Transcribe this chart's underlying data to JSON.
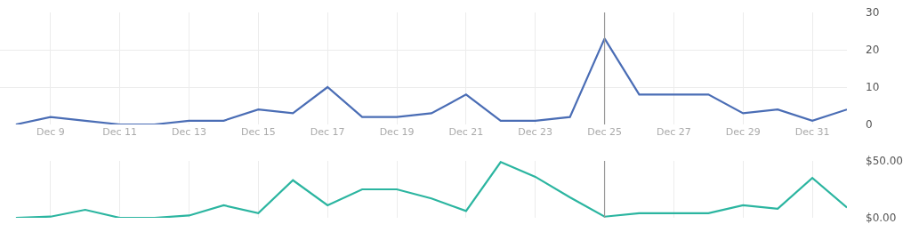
{
  "chart_data": [
    {
      "type": "line",
      "categories": [
        null,
        "Dec 9",
        null,
        "Dec 11",
        null,
        "Dec 13",
        null,
        "Dec 15",
        null,
        "Dec 17",
        null,
        "Dec 19",
        null,
        "Dec 21",
        null,
        "Dec 23",
        null,
        "Dec 25",
        null,
        "Dec 27",
        null,
        "Dec 29",
        null,
        "Dec 31",
        null
      ],
      "series": [
        {
          "color": "#4a6db5",
          "values": [
            0,
            2,
            1,
            0,
            0,
            1,
            1,
            4,
            3,
            10,
            2,
            2,
            3,
            8,
            1,
            1,
            2,
            23,
            8,
            8,
            8,
            3,
            4,
            1,
            4
          ]
        }
      ],
      "ylim": [
        0,
        30
      ],
      "yticks": [
        0,
        10,
        20,
        30
      ],
      "grid": true,
      "line_style": "solid",
      "ref_lines": [
        {
          "axis": "x",
          "value": "Dec 25",
          "color": "#999999"
        }
      ]
    },
    {
      "type": "line",
      "categories": [
        null,
        "Dec 9",
        null,
        "Dec 11",
        null,
        "Dec 13",
        null,
        "Dec 15",
        null,
        "Dec 17",
        null,
        "Dec 19",
        null,
        "Dec 21",
        null,
        "Dec 23",
        null,
        "Dec 25",
        null,
        "Dec 27",
        null,
        "Dec 29",
        null,
        "Dec 31",
        null
      ],
      "series": [
        {
          "color": "#2bb5a0",
          "values": [
            0,
            1,
            7,
            0,
            0,
            2,
            11,
            4,
            33,
            11,
            25,
            25,
            17,
            6,
            49,
            36,
            18,
            1,
            4,
            4,
            4,
            11,
            8,
            35,
            9
          ]
        }
      ],
      "ylim": [
        0,
        50
      ],
      "yticks": [
        {
          "value": 0,
          "label": "$0.00"
        },
        {
          "value": 50,
          "label": "$50.00"
        }
      ],
      "grid": true,
      "line_style": "solid",
      "tick_labels": "y",
      "ref_lines": [
        {
          "axis": "x",
          "value": "Dec 25",
          "color": "#999999"
        }
      ]
    }
  ]
}
